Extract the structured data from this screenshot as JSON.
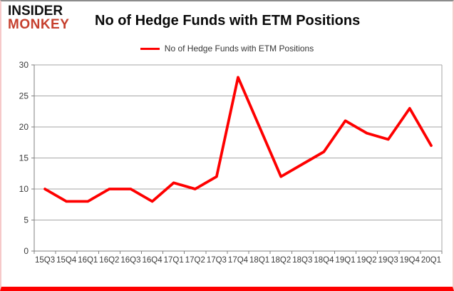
{
  "header": {
    "logo_line1": "INSIDER",
    "logo_line2": "MONKEY",
    "title": "No of Hedge Funds with ETM Positions"
  },
  "legend": {
    "label": "No of Hedge Funds with ETM Positions"
  },
  "colors": {
    "line": "#fe0000",
    "logo_accent": "#c6402e",
    "logo_main": "#111111",
    "gridline": "#a6a6a6",
    "axis": "#808080",
    "tick_text": "#3b3b3b",
    "border_bottom": "#fe0000",
    "border_sides": "#f6c9c9",
    "border_top": "#8c8c8c",
    "background": "#ffffff"
  },
  "chart_data": {
    "type": "line",
    "title": "No of Hedge Funds with ETM Positions",
    "categories": [
      "15Q3",
      "15Q4",
      "16Q1",
      "16Q2",
      "16Q3",
      "16Q4",
      "17Q1",
      "17Q2",
      "17Q3",
      "17Q4",
      "18Q1",
      "18Q2",
      "18Q3",
      "18Q4",
      "19Q1",
      "19Q2",
      "19Q3",
      "19Q4",
      "20Q1"
    ],
    "series": [
      {
        "name": "No of Hedge Funds with ETM Positions",
        "color": "#fe0000",
        "values": [
          10,
          8,
          8,
          10,
          10,
          8,
          11,
          10,
          12,
          28,
          20,
          12,
          14,
          16,
          21,
          19,
          18,
          23,
          17
        ]
      }
    ],
    "xlabel": "",
    "ylabel": "",
    "ylim": [
      0,
      30
    ],
    "yticks": [
      0,
      5,
      10,
      15,
      20,
      25,
      30
    ],
    "grid": true,
    "legend_position": "top-center"
  }
}
